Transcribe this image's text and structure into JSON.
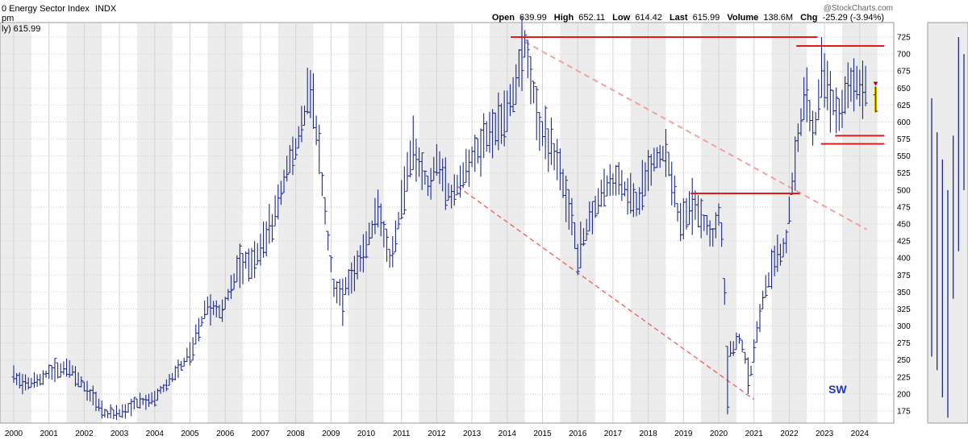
{
  "header": {
    "title": "0 Energy Sector Index",
    "exchange": "INDX",
    "watermark": "@StockCharts.com",
    "sub_label_1": "pm",
    "sub_label_2": "ly) 615.99",
    "ohlc": {
      "open_label": "Open",
      "open": "639.99",
      "high_label": "High",
      "high": "652.11",
      "low_label": "Low",
      "low": "614.42",
      "last_label": "Last",
      "last": "615.99",
      "volume_label": "Volume",
      "volume": "138.6M",
      "chg_label": "Chg",
      "chg": "-25.29 (-3.94%)"
    }
  },
  "annotation": "SW",
  "chart_data": {
    "type": "bar",
    "style": "monthly OHLC bars",
    "x_axis": {
      "start": 2000,
      "end": 2024.6,
      "tick_labels": [
        "2000",
        "2001",
        "2002",
        "2003",
        "2004",
        "2005",
        "2006",
        "2007",
        "2008",
        "2009",
        "2010",
        "2011",
        "2012",
        "2013",
        "2014",
        "2015",
        "2016",
        "2017",
        "2018",
        "2019",
        "2020",
        "2021",
        "2022",
        "2023",
        "2024"
      ]
    },
    "y_axis": {
      "position": "right",
      "ylim": [
        150,
        745
      ],
      "tick_labels": [
        "175",
        "200",
        "225",
        "250",
        "275",
        "300",
        "325",
        "350",
        "375",
        "400",
        "425",
        "450",
        "475",
        "500",
        "525",
        "550",
        "575",
        "600",
        "625",
        "650",
        "675",
        "700",
        "725"
      ]
    },
    "grid": "alternating yearly shading, horizontal dotted gridlines",
    "colors": {
      "bars": "#1b2a8c",
      "last_bar": "#c8b400",
      "resistance": "#e11b1b",
      "trend": "#f06565"
    },
    "anchors": [
      [
        2000.0,
        225
      ],
      [
        2000.5,
        215
      ],
      [
        2001.0,
        232
      ],
      [
        2001.6,
        238
      ],
      [
        2002.0,
        212
      ],
      [
        2002.6,
        170
      ],
      [
        2003.0,
        172
      ],
      [
        2003.5,
        188
      ],
      [
        2004.0,
        195
      ],
      [
        2004.6,
        232
      ],
      [
        2005.0,
        260
      ],
      [
        2005.5,
        330
      ],
      [
        2005.9,
        318
      ],
      [
        2006.4,
        390
      ],
      [
        2006.9,
        400
      ],
      [
        2007.4,
        460
      ],
      [
        2007.8,
        540
      ],
      [
        2008.1,
        580
      ],
      [
        2008.45,
        655
      ],
      [
        2008.8,
        480
      ],
      [
        2009.1,
        350
      ],
      [
        2009.5,
        360
      ],
      [
        2010.0,
        420
      ],
      [
        2010.3,
        470
      ],
      [
        2010.7,
        395
      ],
      [
        2011.0,
        480
      ],
      [
        2011.3,
        570
      ],
      [
        2011.8,
        500
      ],
      [
        2012.0,
        545
      ],
      [
        2012.4,
        490
      ],
      [
        2012.9,
        535
      ],
      [
        2013.3,
        570
      ],
      [
        2013.8,
        600
      ],
      [
        2014.2,
        640
      ],
      [
        2014.5,
        720
      ],
      [
        2014.9,
        590
      ],
      [
        2015.3,
        560
      ],
      [
        2015.8,
        470
      ],
      [
        2016.0,
        405
      ],
      [
        2016.5,
        480
      ],
      [
        2016.9,
        510
      ],
      [
        2017.2,
        510
      ],
      [
        2017.7,
        480
      ],
      [
        2018.0,
        530
      ],
      [
        2018.5,
        560
      ],
      [
        2018.9,
        450
      ],
      [
        2019.3,
        480
      ],
      [
        2019.8,
        430
      ],
      [
        2020.05,
        470
      ],
      [
        2020.25,
        260
      ],
      [
        2020.6,
        280
      ],
      [
        2020.9,
        230
      ],
      [
        2021.2,
        330
      ],
      [
        2021.5,
        385
      ],
      [
        2021.9,
        420
      ],
      [
        2022.2,
        560
      ],
      [
        2022.45,
        640
      ],
      [
        2022.7,
        580
      ],
      [
        2022.95,
        680
      ],
      [
        2023.2,
        635
      ],
      [
        2023.45,
        600
      ],
      [
        2023.7,
        660
      ],
      [
        2023.95,
        655
      ],
      [
        2024.2,
        640
      ]
    ],
    "last_bar": {
      "x": 2024.45,
      "open": 639.99,
      "high": 652.11,
      "low": 614.42,
      "close": 615.99
    },
    "spikes": [
      {
        "x": 2008.3,
        "high": 680
      },
      {
        "x": 2009.3,
        "low": 300
      },
      {
        "x": 2014.5,
        "high": 735
      },
      {
        "x": 2016.0,
        "low": 375
      },
      {
        "x": 2020.25,
        "low": 170
      },
      {
        "x": 2020.85,
        "low": 200
      },
      {
        "x": 2022.9,
        "high": 725
      }
    ],
    "resistance_lines": [
      {
        "x1": 2014.1,
        "x2": 2022.8,
        "y": 725
      },
      {
        "x1": 2022.2,
        "x2": 2024.7,
        "y": 712
      },
      {
        "x1": 2019.2,
        "x2": 2022.3,
        "y": 495
      },
      {
        "x1": 2023.3,
        "x2": 2024.7,
        "y": 580
      },
      {
        "x1": 2022.9,
        "x2": 2024.7,
        "y": 568
      }
    ],
    "trend_lines": [
      {
        "x1": 2014.5,
        "y1": 718,
        "x2": 2024.2,
        "y2": 442,
        "style": "upper channel"
      },
      {
        "x1": 2012.6,
        "y1": 505,
        "x2": 2021.0,
        "y2": 192,
        "style": "lower channel"
      }
    ],
    "side_panel_bars": [
      {
        "low": 255,
        "high": 635
      },
      {
        "low": 235,
        "high": 585
      },
      {
        "low": 195,
        "high": 545
      },
      {
        "low": 165,
        "high": 500
      },
      {
        "low": 340,
        "high": 580
      },
      {
        "low": 410,
        "high": 725
      },
      {
        "low": 500,
        "high": 700
      }
    ]
  }
}
